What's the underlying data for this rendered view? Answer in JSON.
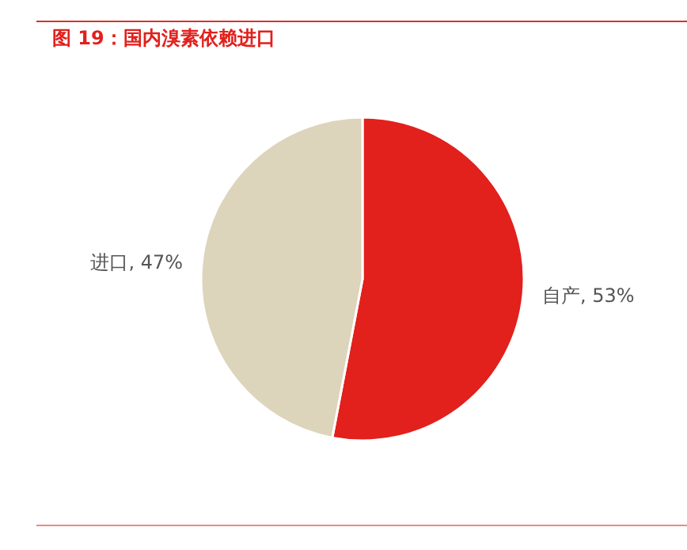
{
  "chart_data": {
    "type": "pie",
    "title": "图 19：国内溴素依赖进口",
    "categories": [
      "自产",
      "进口"
    ],
    "values": [
      53,
      47
    ],
    "value_labels": [
      ", 53%",
      ", 47%"
    ],
    "colors": [
      "#e2201c",
      "#ddd4bc"
    ]
  }
}
